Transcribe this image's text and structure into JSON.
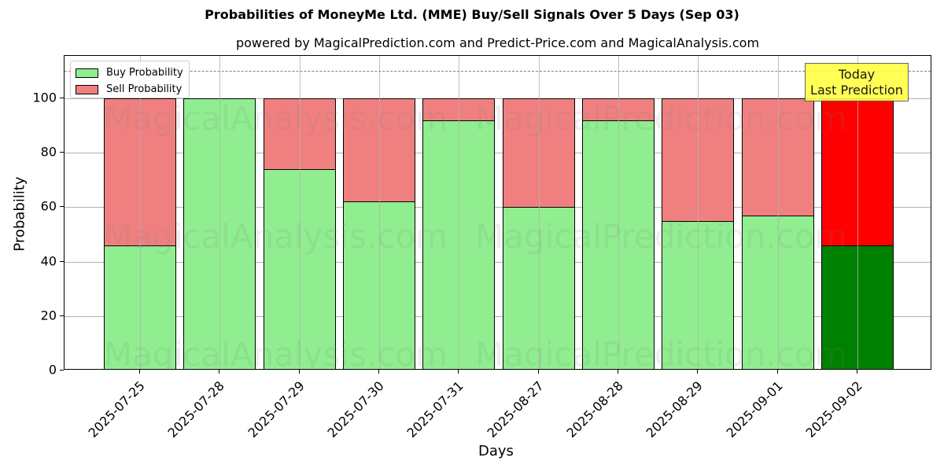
{
  "chart_data": {
    "type": "bar",
    "stacked": true,
    "title": "Probabilities of MoneyMe Ltd. (MME) Buy/Sell Signals Over 5 Days (Sep 03)",
    "subtitle": "powered by MagicalPrediction.com and Predict-Price.com and MagicalAnalysis.com",
    "xlabel": "Days",
    "ylabel": "Probability",
    "ylim": [
      0,
      115
    ],
    "yticks": [
      0,
      20,
      40,
      60,
      80,
      100
    ],
    "grid": true,
    "legend_position": "upper left",
    "reference_line": {
      "y": 110,
      "style": "dashed",
      "color": "#808080"
    },
    "categories": [
      "2025-07-25",
      "2025-07-28",
      "2025-07-29",
      "2025-07-30",
      "2025-07-31",
      "2025-08-27",
      "2025-08-28",
      "2025-08-29",
      "2025-09-01",
      "2025-09-02"
    ],
    "series": [
      {
        "name": "Buy Probability",
        "color": "#90ee90",
        "values": [
          46,
          100,
          74,
          62,
          92,
          60,
          92,
          55,
          57,
          46
        ]
      },
      {
        "name": "Sell Probability",
        "color": "#f08080",
        "values": [
          54,
          0,
          26,
          38,
          8,
          40,
          8,
          45,
          43,
          54
        ]
      }
    ],
    "highlight": {
      "category": "2025-09-02",
      "buy_color": "#008000",
      "sell_color": "#ff0000",
      "annotation": "Today\nLast Prediction"
    }
  },
  "annotation": {
    "line1": "Today",
    "line2": "Last Prediction"
  },
  "legend": {
    "buy": "Buy Probability",
    "sell": "Sell Probability"
  },
  "watermarks": [
    "MagicalAnalysis.com",
    "MagicalPrediction.com"
  ]
}
